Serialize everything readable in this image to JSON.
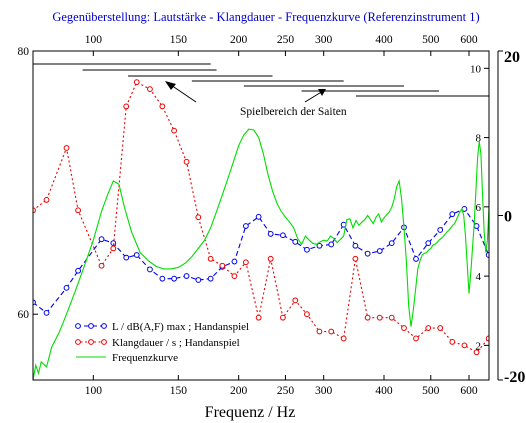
{
  "chart_data": {
    "type": "line",
    "title": "Gegenüberstellung:  Lautstärke - Klangdauer - Frequenzkurve (Referenzinstrument 1)",
    "xlabel": "Frequenz / Hz",
    "x_scale": "log",
    "xlim": [
      75,
      660
    ],
    "x_ticks": [
      100,
      150,
      200,
      250,
      300,
      400,
      500,
      600
    ],
    "left_axis": {
      "ylim": [
        55,
        80
      ],
      "ticks": [
        60,
        80
      ]
    },
    "right_inner_axis": {
      "ylim": [
        1,
        10.5
      ],
      "ticks": [
        2,
        4,
        6,
        8,
        10
      ]
    },
    "right_outer_axis": {
      "ylim": [
        -20,
        20
      ],
      "ticks": [
        -20,
        0,
        20
      ]
    },
    "legend": {
      "position": "bottom-left"
    },
    "annotation": {
      "text": "Spielbereich der Saiten"
    },
    "ranges": [
      {
        "from": 75,
        "to": 175
      },
      {
        "from": 95,
        "to": 180
      },
      {
        "from": 118,
        "to": 235
      },
      {
        "from": 160,
        "to": 330
      },
      {
        "from": 205,
        "to": 440
      },
      {
        "from": 270,
        "to": 520
      },
      {
        "from": 350,
        "to": 660
      }
    ],
    "series": [
      {
        "name": "L / dB(A,F) max ; Handanspiel",
        "axis": "left",
        "color": "#0000ee",
        "line": "dashed",
        "marker": "circle",
        "x": [
          75,
          80,
          88,
          93,
          104,
          110,
          117,
          123,
          131,
          139,
          147,
          156,
          165,
          175,
          185,
          196,
          207,
          220,
          233,
          247,
          262,
          277,
          294,
          311,
          330,
          349,
          370,
          392,
          415,
          440,
          466,
          494,
          523,
          554,
          587,
          622,
          659
        ],
        "y": [
          60.9,
          60.1,
          62.0,
          63.3,
          65.7,
          65.4,
          64.3,
          64.5,
          63.4,
          62.7,
          62.7,
          62.9,
          62.6,
          62.7,
          63.6,
          64.0,
          66.7,
          67.4,
          66.1,
          66.0,
          65.5,
          64.9,
          65.2,
          65.3,
          66.8,
          65.2,
          64.6,
          64.8,
          65.4,
          66.6,
          64.2,
          65.4,
          66.4,
          67.6,
          68.0,
          66.7,
          64.5
        ]
      },
      {
        "name": "Klangdauer / s ; Handanspiel",
        "axis": "right_inner",
        "color": "#ee0000",
        "line": "dotted",
        "marker": "circle",
        "x": [
          75,
          80,
          88,
          93,
          104,
          110,
          117,
          123,
          131,
          139,
          147,
          156,
          165,
          175,
          185,
          196,
          207,
          220,
          233,
          247,
          262,
          277,
          294,
          311,
          330,
          349,
          370,
          392,
          415,
          440,
          466,
          494,
          523,
          554,
          587,
          622,
          659
        ],
        "y": [
          5.9,
          6.2,
          7.7,
          5.9,
          4.3,
          4.8,
          8.9,
          9.6,
          9.4,
          8.9,
          8.2,
          7.3,
          5.7,
          4.5,
          4.3,
          4.0,
          4.4,
          2.8,
          4.5,
          2.8,
          3.3,
          2.9,
          2.4,
          2.4,
          2.2,
          4.5,
          2.8,
          2.8,
          2.8,
          2.5,
          2.2,
          2.5,
          2.5,
          2.1,
          2.0,
          1.8,
          2.2
        ]
      },
      {
        "name": "Frequenzkurve",
        "axis": "right_outer",
        "color": "#00dd00",
        "line": "solid",
        "marker": "none",
        "x": [
          75,
          76,
          77,
          78,
          80,
          82,
          85,
          88,
          92,
          96,
          100,
          104,
          107,
          110,
          113,
          116,
          120,
          125,
          130,
          135,
          140,
          145,
          150,
          155,
          160,
          165,
          170,
          175,
          180,
          185,
          190,
          195,
          200,
          205,
          210,
          215,
          220,
          225,
          230,
          235,
          240,
          245,
          250,
          255,
          260,
          265,
          270,
          275,
          280,
          285,
          290,
          295,
          300,
          305,
          310,
          315,
          320,
          325,
          330,
          335,
          340,
          345,
          350,
          355,
          360,
          365,
          370,
          375,
          380,
          385,
          390,
          395,
          400,
          405,
          410,
          415,
          420,
          425,
          430,
          435,
          440,
          445,
          450,
          455,
          460,
          465,
          470,
          475,
          480,
          485,
          490,
          495,
          500,
          505,
          510,
          515,
          520,
          525,
          530,
          535,
          540,
          545,
          550,
          555,
          560,
          565,
          570,
          575,
          580,
          585,
          590,
          595,
          600,
          605,
          610,
          615,
          620,
          625,
          630,
          635,
          640,
          645,
          650,
          655,
          660
        ],
        "y": [
          -20.0,
          -18.2,
          -19.2,
          -17.8,
          -18.4,
          -16.0,
          -14.2,
          -12.0,
          -9.0,
          -6.0,
          -3.0,
          0.5,
          2.5,
          4.2,
          3.8,
          1.0,
          -2.0,
          -4.5,
          -5.5,
          -6.2,
          -6.5,
          -6.5,
          -6.3,
          -5.8,
          -5.0,
          -4.0,
          -3.0,
          -1.5,
          0.5,
          2.5,
          4.5,
          6.5,
          8.5,
          9.8,
          10.5,
          10.4,
          9.5,
          7.5,
          5.0,
          3.0,
          1.5,
          0.5,
          -0.2,
          -0.8,
          -1.5,
          -2.8,
          -3.5,
          -2.5,
          -3.0,
          -3.4,
          -3.5,
          -3.2,
          -3.0,
          -3.1,
          -2.5,
          -2.8,
          -3.3,
          -2.9,
          -2.5,
          -0.5,
          -0.4,
          -1.5,
          -0.6,
          -1.2,
          -0.8,
          -0.5,
          0.0,
          -0.5,
          -1.0,
          -0.2,
          0.2,
          -0.8,
          -0.3,
          0.1,
          0.4,
          1.0,
          2.0,
          3.5,
          4.2,
          2.0,
          -1.5,
          -5.5,
          -11.0,
          -13.5,
          -11.5,
          -9.0,
          -6.5,
          -5.5,
          -4.8,
          -4.6,
          -4.5,
          -4.2,
          -4.0,
          -3.6,
          -3.5,
          -3.3,
          -3.0,
          -2.8,
          -2.6,
          -2.3,
          -2.0,
          -1.8,
          -1.5,
          -1.2,
          -1.0,
          -0.5,
          0.0,
          0.5,
          0.8,
          0.0,
          -2.5,
          -6.0,
          -9.5,
          -7.0,
          -4.0,
          -1.0,
          3.0,
          7.0,
          9.0,
          7.5,
          2.5,
          -2.0,
          -4.5,
          -3.0,
          1.0
        ]
      }
    ]
  }
}
